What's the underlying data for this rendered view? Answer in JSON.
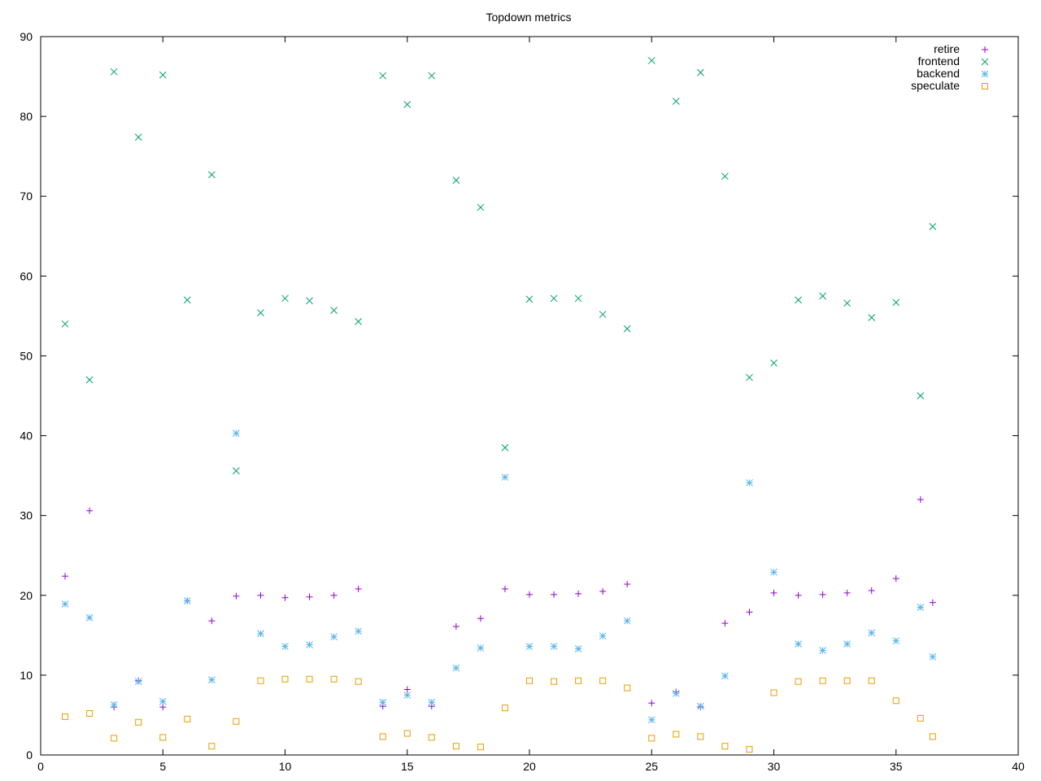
{
  "chart_data": {
    "type": "scatter",
    "title": "Topdown metrics",
    "xlabel": "",
    "ylabel": "",
    "xlim": [
      0,
      40
    ],
    "ylim": [
      0,
      90
    ],
    "xticks": [
      0,
      5,
      10,
      15,
      20,
      25,
      30,
      35,
      40
    ],
    "yticks": [
      0,
      10,
      20,
      30,
      40,
      50,
      60,
      70,
      80,
      90
    ],
    "grid": false,
    "legend_position": "top-right",
    "x": [
      1,
      2,
      3,
      4,
      5,
      6,
      7,
      8,
      9,
      10,
      11,
      12,
      13,
      14,
      15,
      16,
      17,
      18,
      19,
      20,
      21,
      22,
      23,
      24,
      25,
      26,
      27,
      28,
      29,
      30,
      31,
      32,
      33,
      34,
      35,
      36,
      36.5
    ],
    "series": [
      {
        "name": "retire",
        "color": "#9400d3",
        "marker": "plus",
        "values": [
          22.4,
          30.6,
          6.0,
          9.3,
          6.0,
          19.3,
          16.8,
          19.9,
          20.0,
          19.7,
          19.8,
          20.0,
          20.8,
          6.1,
          8.2,
          6.1,
          16.1,
          17.1,
          20.8,
          20.1,
          20.1,
          20.2,
          20.5,
          21.4,
          6.5,
          7.9,
          6.0,
          16.5,
          17.9,
          20.3,
          20.0,
          20.1,
          20.3,
          20.6,
          22.1,
          32.0,
          19.1
        ]
      },
      {
        "name": "frontend",
        "color": "#009e73",
        "marker": "cross",
        "values": [
          54.0,
          47.0,
          85.6,
          77.4,
          85.2,
          57.0,
          72.7,
          35.6,
          55.4,
          57.2,
          56.9,
          55.7,
          54.3,
          85.1,
          81.5,
          85.1,
          72.0,
          68.6,
          38.5,
          57.1,
          57.2,
          57.2,
          55.2,
          53.4,
          87.0,
          81.9,
          85.5,
          72.5,
          47.3,
          49.1,
          57.0,
          57.5,
          56.6,
          54.8,
          56.7,
          45.0,
          66.2
        ]
      },
      {
        "name": "backend",
        "color": "#56b4e9",
        "marker": "star",
        "values": [
          18.9,
          17.2,
          6.3,
          9.2,
          6.7,
          19.3,
          9.4,
          40.3,
          15.2,
          13.6,
          13.8,
          14.8,
          15.5,
          6.6,
          7.5,
          6.6,
          10.9,
          13.4,
          34.8,
          13.6,
          13.6,
          13.3,
          14.9,
          16.8,
          4.4,
          7.7,
          6.1,
          9.9,
          34.1,
          22.9,
          13.9,
          13.1,
          13.9,
          15.3,
          14.3,
          18.5,
          12.3
        ]
      },
      {
        "name": "speculate",
        "color": "#e69f00",
        "marker": "square",
        "values": [
          4.8,
          5.2,
          2.1,
          4.1,
          2.2,
          4.5,
          1.1,
          4.2,
          9.3,
          9.5,
          9.5,
          9.5,
          9.2,
          2.3,
          2.7,
          2.2,
          1.1,
          1.0,
          5.9,
          9.3,
          9.2,
          9.3,
          9.3,
          8.4,
          2.1,
          2.6,
          2.3,
          1.1,
          0.7,
          7.8,
          9.2,
          9.3,
          9.3,
          9.3,
          6.8,
          4.6,
          2.3
        ]
      }
    ]
  }
}
